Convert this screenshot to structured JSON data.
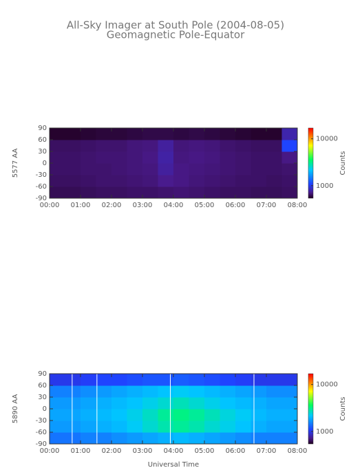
{
  "chart_data": [
    {
      "type": "heatmap",
      "title": "All-Sky Imager at South Pole (2004-08-05)",
      "subtitle": "Geomagnetic Pole-Equator",
      "y_label": "5577 AA",
      "colorbar_label": "Counts",
      "x": [
        0.25,
        0.75,
        1.25,
        1.75,
        2.25,
        2.75,
        3.25,
        3.75,
        4.25,
        4.75,
        5.25,
        5.75,
        6.25,
        6.75,
        7.25,
        7.75
      ],
      "y": [
        -75,
        -45,
        -15,
        15,
        45,
        75
      ],
      "values": [
        [
          620,
          620,
          630,
          640,
          640,
          650,
          650,
          660,
          670,
          660,
          650,
          640,
          640,
          630,
          630,
          640
        ],
        [
          640,
          640,
          650,
          660,
          660,
          670,
          680,
          720,
          700,
          680,
          670,
          660,
          650,
          650,
          640,
          650
        ],
        [
          650,
          650,
          660,
          660,
          670,
          680,
          690,
          760,
          700,
          690,
          680,
          670,
          660,
          650,
          650,
          660
        ],
        [
          650,
          650,
          660,
          670,
          670,
          680,
          700,
          780,
          690,
          700,
          690,
          670,
          660,
          650,
          650,
          700
        ],
        [
          640,
          640,
          650,
          660,
          660,
          680,
          690,
          760,
          680,
          690,
          680,
          660,
          650,
          640,
          640,
          1100
        ],
        [
          560,
          560,
          570,
          580,
          580,
          590,
          600,
          600,
          590,
          600,
          590,
          580,
          570,
          560,
          560,
          800
        ]
      ],
      "xlim": [
        0,
        8
      ],
      "xticks": [
        {
          "value": 0,
          "label": "00:00"
        },
        {
          "value": 1,
          "label": "01:00"
        },
        {
          "value": 2,
          "label": "02:00"
        },
        {
          "value": 3,
          "label": "03:00"
        },
        {
          "value": 4,
          "label": "04:00"
        },
        {
          "value": 5,
          "label": "05:00"
        },
        {
          "value": 6,
          "label": "06:00"
        },
        {
          "value": 7,
          "label": "07:00"
        },
        {
          "value": 8,
          "label": "08:00"
        }
      ],
      "ylim": [
        -90,
        90
      ],
      "yticks": [
        -90,
        -60,
        -30,
        0,
        30,
        60,
        90
      ],
      "clim": [
        540,
        17000
      ],
      "cticks": [
        1000,
        10000
      ],
      "log_color": true,
      "colormap": [
        {
          "pos": 0,
          "color": "#200020"
        },
        {
          "pos": 0.08,
          "color": "#4a1a8a"
        },
        {
          "pos": 0.2,
          "color": "#2040ff"
        },
        {
          "pos": 0.4,
          "color": "#00c8ff"
        },
        {
          "pos": 0.55,
          "color": "#00ff60"
        },
        {
          "pos": 0.75,
          "color": "#ffff00"
        },
        {
          "pos": 1,
          "color": "#ff0000"
        }
      ]
    },
    {
      "type": "heatmap",
      "y_label": "5890 AA",
      "colorbar_label": "Counts",
      "x_label": "Universal Time",
      "x": [
        0.25,
        0.75,
        1.25,
        1.75,
        2.25,
        2.75,
        3.25,
        3.75,
        4.25,
        4.75,
        5.25,
        5.75,
        6.25,
        6.75,
        7.25,
        7.75
      ],
      "y": [
        -75,
        -45,
        -15,
        15,
        45,
        75
      ],
      "values": [
        [
          1400,
          1400,
          1500,
          1500,
          1600,
          1700,
          1800,
          1900,
          2000,
          1900,
          1800,
          1700,
          1600,
          1500,
          1500,
          1500
        ],
        [
          1700,
          1700,
          1800,
          1900,
          2000,
          2200,
          2500,
          2800,
          3000,
          2800,
          2500,
          2300,
          2100,
          1900,
          1800,
          1800
        ],
        [
          1800,
          1800,
          1900,
          2000,
          2100,
          2300,
          2600,
          3000,
          3200,
          3000,
          2700,
          2400,
          2200,
          2000,
          1900,
          1900
        ],
        [
          1700,
          1700,
          1800,
          1900,
          2000,
          2100,
          2300,
          2500,
          2700,
          2500,
          2300,
          2100,
          2000,
          1900,
          1800,
          1800
        ],
        [
          1500,
          1500,
          1600,
          1700,
          1800,
          1900,
          2000,
          2100,
          2200,
          2100,
          2000,
          1900,
          1800,
          1700,
          1600,
          1600
        ],
        [
          1000,
          1000,
          1050,
          1100,
          1100,
          1150,
          1200,
          1200,
          1250,
          1200,
          1150,
          1100,
          1050,
          1000,
          1000,
          1000
        ]
      ],
      "vertical_lines": [
        0.73,
        1.53,
        3.9,
        6.6
      ],
      "xlim": [
        0,
        8
      ],
      "xticks": [
        {
          "value": 0,
          "label": "00:00"
        },
        {
          "value": 1,
          "label": "01:00"
        },
        {
          "value": 2,
          "label": "02:00"
        },
        {
          "value": 3,
          "label": "03:00"
        },
        {
          "value": 4,
          "label": "04:00"
        },
        {
          "value": 5,
          "label": "05:00"
        },
        {
          "value": 6,
          "label": "06:00"
        },
        {
          "value": 7,
          "label": "07:00"
        },
        {
          "value": 8,
          "label": "08:00"
        }
      ],
      "ylim": [
        -90,
        90
      ],
      "yticks": [
        -90,
        -60,
        -30,
        0,
        30,
        60,
        90
      ],
      "clim": [
        540,
        17000
      ],
      "cticks": [
        1000,
        10000
      ],
      "log_color": true,
      "colormap": [
        {
          "pos": 0,
          "color": "#200020"
        },
        {
          "pos": 0.08,
          "color": "#4a1a8a"
        },
        {
          "pos": 0.2,
          "color": "#2040ff"
        },
        {
          "pos": 0.4,
          "color": "#00c8ff"
        },
        {
          "pos": 0.55,
          "color": "#00ff60"
        },
        {
          "pos": 0.75,
          "color": "#ffff00"
        },
        {
          "pos": 1,
          "color": "#ff0000"
        }
      ]
    }
  ]
}
